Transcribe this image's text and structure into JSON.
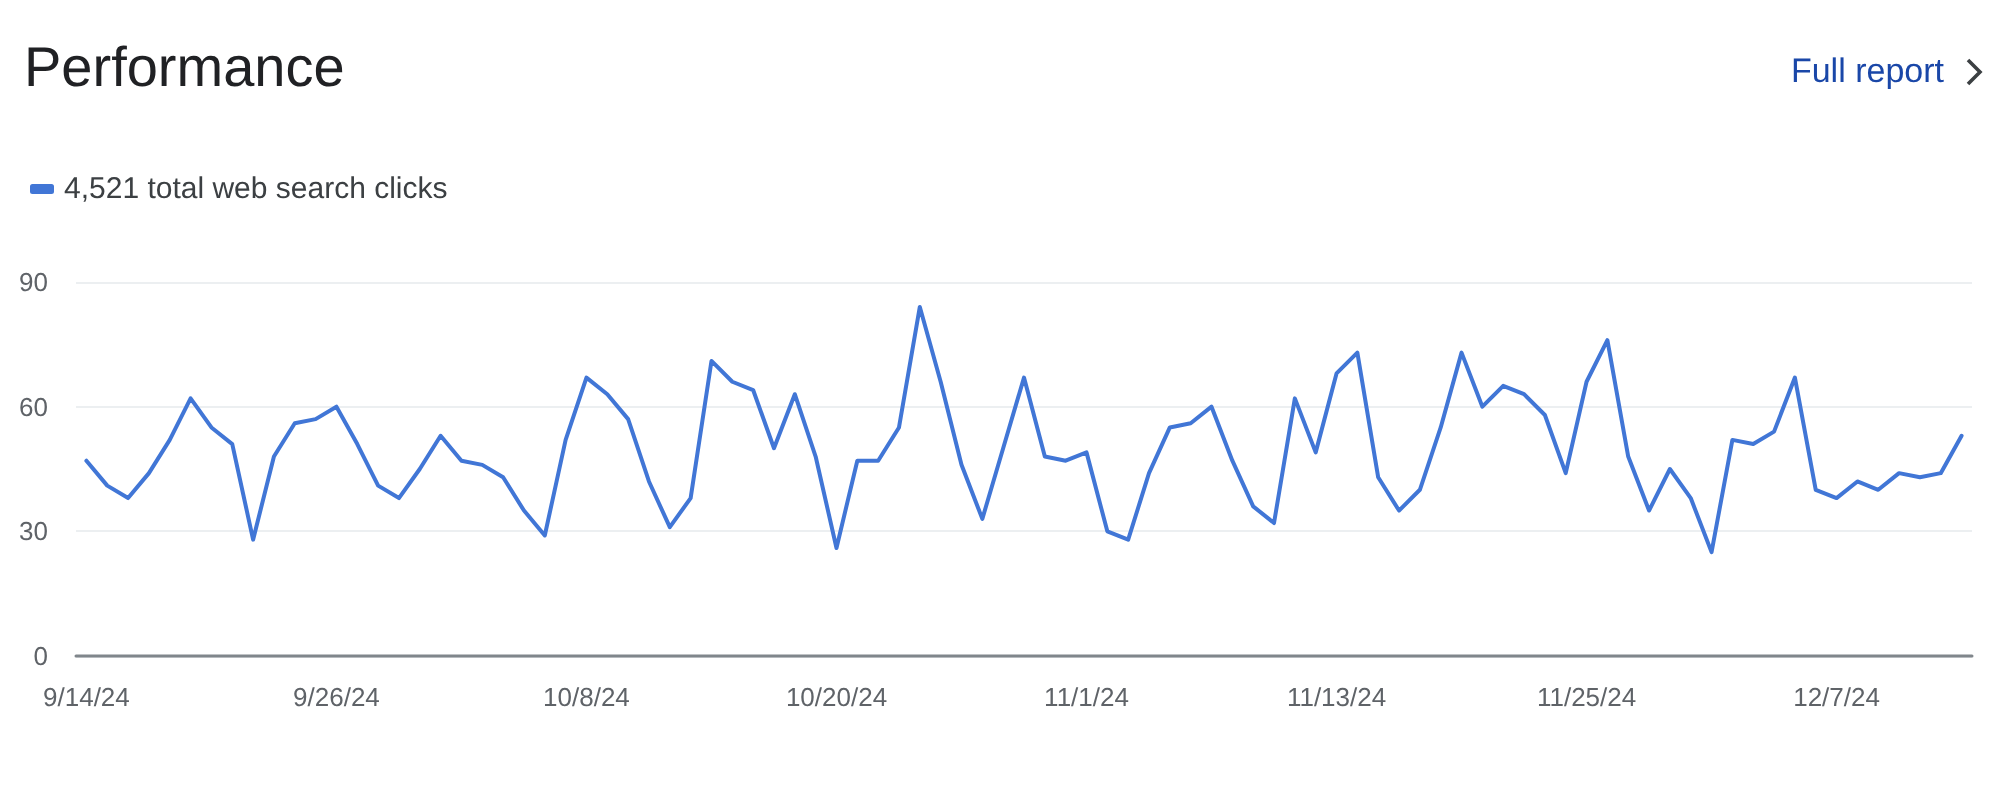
{
  "chart_data": {
    "type": "line",
    "title": "Performance",
    "annotations": [
      "Full report"
    ],
    "categories": [
      "9/14/24",
      null,
      null,
      null,
      null,
      null,
      null,
      null,
      null,
      null,
      null,
      null,
      "9/26/24",
      null,
      null,
      null,
      null,
      null,
      null,
      null,
      null,
      null,
      null,
      null,
      "10/8/24",
      null,
      null,
      null,
      null,
      null,
      null,
      null,
      null,
      null,
      null,
      null,
      "10/20/24",
      null,
      null,
      null,
      null,
      null,
      null,
      null,
      null,
      null,
      null,
      null,
      "11/1/24",
      null,
      null,
      null,
      null,
      null,
      null,
      null,
      null,
      null,
      null,
      null,
      "11/13/24",
      null,
      null,
      null,
      null,
      null,
      null,
      null,
      null,
      null,
      null,
      null,
      "11/25/24",
      null,
      null,
      null,
      null,
      null,
      null,
      null,
      null,
      null,
      null,
      null,
      "12/7/24",
      null,
      null,
      null,
      null,
      null,
      null
    ],
    "series": [
      {
        "name": "4,521 total web search clicks",
        "color": "#4176d6",
        "values": [
          47,
          41,
          38,
          44,
          52,
          62,
          55,
          51,
          28,
          48,
          56,
          57,
          60,
          51,
          41,
          38,
          45,
          53,
          47,
          46,
          43,
          35,
          29,
          52,
          67,
          63,
          57,
          42,
          31,
          38,
          71,
          66,
          64,
          50,
          63,
          48,
          26,
          47,
          47,
          55,
          84,
          66,
          46,
          33,
          50,
          67,
          48,
          47,
          49,
          30,
          28,
          44,
          55,
          56,
          60,
          47,
          36,
          32,
          62,
          49,
          68,
          73,
          43,
          35,
          40,
          55,
          73,
          60,
          65,
          63,
          58,
          44,
          66,
          76,
          48,
          35,
          45,
          38,
          25,
          52,
          51,
          54,
          67,
          40,
          38,
          42,
          40,
          44,
          43,
          44,
          53
        ]
      }
    ],
    "ylim": [
      0,
      90
    ],
    "yticks": [
      0,
      30,
      60,
      90
    ],
    "grid": "y",
    "legend": "top left",
    "marker": "none",
    "line_style": "solid"
  }
}
